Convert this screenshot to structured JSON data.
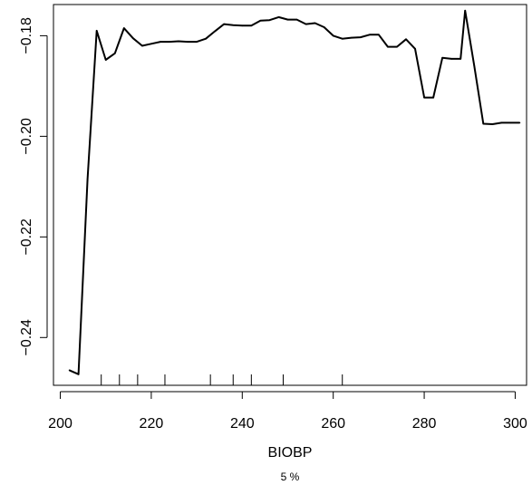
{
  "chart_data": {
    "type": "line",
    "xlabel": "BIOBP",
    "ylabel": "",
    "subtitle": "5 %",
    "xlim": [
      198.5,
      302.5
    ],
    "ylim": [
      -0.2495,
      -0.1738
    ],
    "x_ticks": [
      200,
      220,
      240,
      260,
      280,
      300
    ],
    "x_tick_labels": [
      "200",
      "220",
      "240",
      "260",
      "280",
      "300"
    ],
    "y_ticks": [
      -0.24,
      -0.22,
      -0.2,
      -0.18
    ],
    "y_tick_labels": [
      "-0.24",
      "-0.22",
      "-0.20",
      "-0.18"
    ],
    "rug": [
      209,
      213,
      217,
      223,
      233,
      238,
      242,
      249,
      262
    ],
    "line_color": "#000000",
    "series": [
      {
        "x": [
          202,
          204,
          206,
          208,
          210,
          212,
          214,
          216,
          218,
          220,
          222,
          224,
          226,
          228,
          230,
          232,
          234,
          236,
          238,
          240,
          242,
          244,
          246,
          248,
          250,
          252,
          254,
          256,
          258,
          260,
          262,
          264,
          266,
          268,
          270,
          272,
          274,
          276,
          278,
          280,
          282,
          284,
          286,
          288,
          289,
          291,
          293,
          295,
          297,
          299,
          301
        ],
        "values": [
          -0.2465,
          -0.2473,
          -0.2085,
          -0.179,
          -0.1848,
          -0.1835,
          -0.1785,
          -0.1805,
          -0.182,
          -0.1816,
          -0.1812,
          -0.1812,
          -0.1811,
          -0.1812,
          -0.1812,
          -0.1806,
          -0.1791,
          -0.1777,
          -0.1779,
          -0.178,
          -0.178,
          -0.177,
          -0.1769,
          -0.1763,
          -0.1768,
          -0.1768,
          -0.1777,
          -0.1775,
          -0.1783,
          -0.18,
          -0.1806,
          -0.1804,
          -0.1803,
          -0.1798,
          -0.1798,
          -0.1822,
          -0.1822,
          -0.1807,
          -0.1826,
          -0.1923,
          -0.1923,
          -0.1844,
          -0.1846,
          -0.1846,
          -0.175,
          -0.186,
          -0.1975,
          -0.1976,
          -0.1973,
          -0.1973,
          -0.1973
        ]
      }
    ]
  }
}
